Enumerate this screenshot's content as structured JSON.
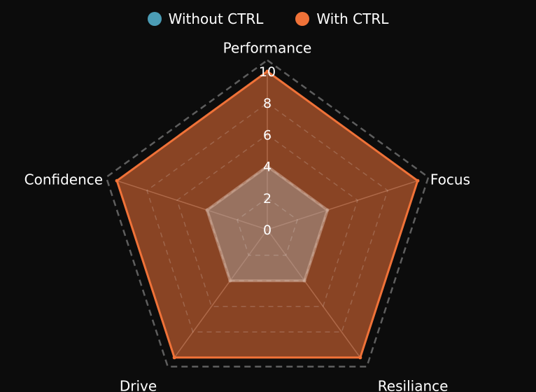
{
  "chart_data": {
    "type": "radar",
    "axes": [
      "Performance",
      "Focus",
      "Resiliance",
      "Drive",
      "Confidence"
    ],
    "ticks": [
      "0",
      "2",
      "4",
      "6",
      "8",
      "10"
    ],
    "range": [
      0,
      10
    ],
    "grid": true,
    "legend_position": "top-center",
    "series": [
      {
        "name": "Without CTRL",
        "values": [
          4,
          4,
          4,
          4,
          4
        ],
        "color": "#4b9cb5"
      },
      {
        "name": "With CTRL",
        "values": [
          10,
          10,
          10,
          10,
          10
        ],
        "color": "#f07238"
      }
    ]
  }
}
